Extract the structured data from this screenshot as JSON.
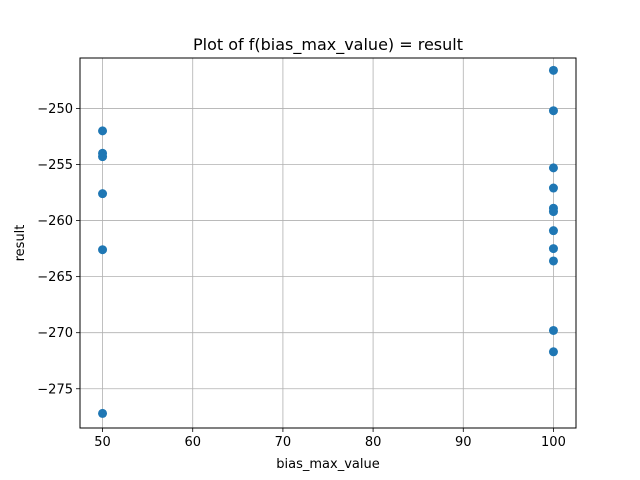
{
  "chart_data": {
    "type": "scatter",
    "title": "Plot of f(bias_max_value) = result",
    "xlabel": "bias_max_value",
    "ylabel": "result",
    "xlim": [
      47.5,
      102.5
    ],
    "ylim": [
      -278.5,
      -245.5
    ],
    "xticks": [
      50,
      60,
      70,
      80,
      90,
      100
    ],
    "yticks": [
      -275,
      -270,
      -265,
      -260,
      -255,
      -250
    ],
    "xtick_labels": [
      "50",
      "60",
      "70",
      "80",
      "90",
      "100"
    ],
    "ytick_labels": [
      "−275",
      "−270",
      "−265",
      "−260",
      "−255",
      "−250"
    ],
    "grid": true,
    "marker_color": "#1f77b4",
    "points": [
      {
        "x": 50,
        "y": -252.0
      },
      {
        "x": 50,
        "y": -254.0
      },
      {
        "x": 50,
        "y": -254.3
      },
      {
        "x": 50,
        "y": -257.6
      },
      {
        "x": 50,
        "y": -262.6
      },
      {
        "x": 50,
        "y": -277.2
      },
      {
        "x": 100,
        "y": -246.6
      },
      {
        "x": 100,
        "y": -250.2
      },
      {
        "x": 100,
        "y": -255.3
      },
      {
        "x": 100,
        "y": -257.1
      },
      {
        "x": 100,
        "y": -258.9
      },
      {
        "x": 100,
        "y": -259.2
      },
      {
        "x": 100,
        "y": -260.9
      },
      {
        "x": 100,
        "y": -262.5
      },
      {
        "x": 100,
        "y": -263.6
      },
      {
        "x": 100,
        "y": -269.8
      },
      {
        "x": 100,
        "y": -271.7
      }
    ]
  }
}
